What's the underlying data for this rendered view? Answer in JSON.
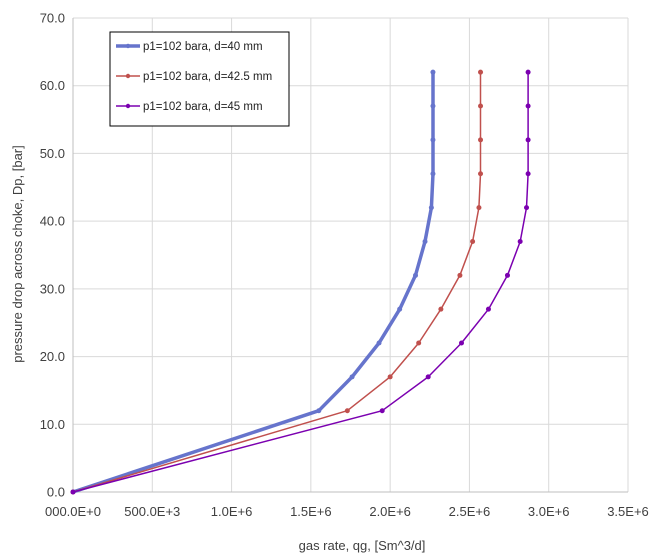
{
  "chart_data": {
    "type": "line",
    "title": "",
    "xlabel": "gas rate, qg, [Sm^3/d]",
    "ylabel": "pressure drop across choke, Dp, [bar]",
    "xlim": [
      0,
      3500000
    ],
    "ylim": [
      0,
      70
    ],
    "x_ticks": [
      0,
      500000,
      1000000,
      1500000,
      2000000,
      2500000,
      3000000,
      3500000
    ],
    "x_tick_labels": [
      "000.0E+0",
      "500.0E+3",
      "1.0E+6",
      "1.5E+6",
      "2.0E+6",
      "2.5E+6",
      "3.0E+6",
      "3.5E+6"
    ],
    "y_ticks": [
      0,
      10,
      20,
      30,
      40,
      50,
      60,
      70
    ],
    "y_tick_labels": [
      "0.0",
      "10.0",
      "20.0",
      "30.0",
      "40.0",
      "50.0",
      "60.0",
      "70.0"
    ],
    "grid": true,
    "legend_position": "top-left",
    "series": [
      {
        "name": "p1=102 bara, d=40 mm",
        "color": "#6674cc",
        "x": [
          0,
          1550000,
          1760000,
          1930000,
          2060000,
          2160000,
          2220000,
          2260000,
          2270000,
          2270000,
          2270000,
          2270000
        ],
        "y": [
          0,
          12,
          17,
          22,
          27,
          32,
          37,
          42,
          47,
          52,
          57,
          62
        ]
      },
      {
        "name": "p1=102 bara, d=42.5 mm",
        "color": "#c0504d",
        "x": [
          0,
          1730000,
          2000000,
          2180000,
          2320000,
          2440000,
          2520000,
          2560000,
          2570000,
          2570000,
          2570000,
          2570000
        ],
        "y": [
          0,
          12,
          17,
          22,
          27,
          32,
          37,
          42,
          47,
          52,
          57,
          62
        ]
      },
      {
        "name": "p1=102 bara, d=45 mm",
        "color": "#7b00b0",
        "x": [
          0,
          1950000,
          2240000,
          2450000,
          2620000,
          2740000,
          2820000,
          2860000,
          2870000,
          2870000,
          2870000,
          2870000
        ],
        "y": [
          0,
          12,
          17,
          22,
          27,
          32,
          37,
          42,
          47,
          52,
          57,
          62
        ]
      }
    ]
  }
}
